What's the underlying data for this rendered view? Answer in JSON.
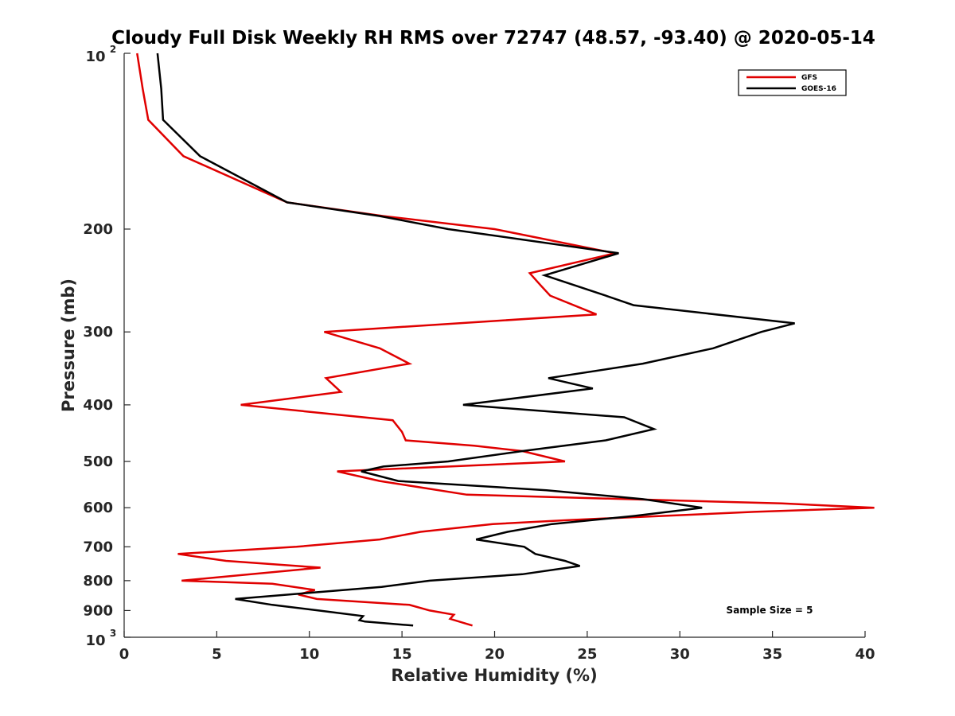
{
  "chart_data": {
    "type": "line",
    "title": "Cloudy Full Disk Weekly RH RMS over 72747 (48.57, -93.40) @ 2020-05-14",
    "xlabel": "Relative Humidity (%)",
    "ylabel": "Pressure (mb)",
    "xlim": [
      0,
      40
    ],
    "ylim": [
      100,
      1000
    ],
    "yscale": "log",
    "yreverse": true,
    "x_ticks": [
      "0",
      "5",
      "10",
      "15",
      "20",
      "25",
      "30",
      "35",
      "40"
    ],
    "y_ticks": [
      {
        "value": 100,
        "base": "10",
        "exp": "2"
      },
      {
        "value": 200,
        "label": "200"
      },
      {
        "value": 300,
        "label": "300"
      },
      {
        "value": 400,
        "label": "400"
      },
      {
        "value": 500,
        "label": "500"
      },
      {
        "value": 600,
        "label": "600"
      },
      {
        "value": 700,
        "label": "700"
      },
      {
        "value": 800,
        "label": "800"
      },
      {
        "value": 900,
        "label": "900"
      },
      {
        "value": 1000,
        "base": "10",
        "exp": "3"
      }
    ],
    "legend_position": "top-right",
    "annotation": "Sample Size = 5",
    "series": [
      {
        "name": "GFS",
        "color": "#e00000",
        "points": [
          [
            0.7,
            100
          ],
          [
            1.0,
            115
          ],
          [
            1.3,
            130
          ],
          [
            3.2,
            150
          ],
          [
            8.8,
            180
          ],
          [
            14.0,
            190
          ],
          [
            20.0,
            200
          ],
          [
            26.5,
            220
          ],
          [
            21.9,
            238
          ],
          [
            22.5,
            250
          ],
          [
            23.0,
            260
          ],
          [
            25.5,
            280
          ],
          [
            10.8,
            300
          ],
          [
            13.8,
            320
          ],
          [
            15.4,
            340
          ],
          [
            10.9,
            360
          ],
          [
            11.7,
            380
          ],
          [
            6.3,
            400
          ],
          [
            14.5,
            425
          ],
          [
            15.0,
            445
          ],
          [
            15.2,
            460
          ],
          [
            18.9,
            470
          ],
          [
            21.5,
            480
          ],
          [
            23.8,
            500
          ],
          [
            11.5,
            520
          ],
          [
            13.8,
            540
          ],
          [
            18.5,
            570
          ],
          [
            35.5,
            590
          ],
          [
            40.5,
            600
          ],
          [
            34.0,
            610
          ],
          [
            24.0,
            630
          ],
          [
            19.9,
            640
          ],
          [
            16.0,
            660
          ],
          [
            13.8,
            680
          ],
          [
            9.3,
            700
          ],
          [
            2.9,
            720
          ],
          [
            5.5,
            740
          ],
          [
            10.6,
            760
          ],
          [
            3.1,
            800
          ],
          [
            8.0,
            810
          ],
          [
            10.3,
            830
          ],
          [
            9.4,
            845
          ],
          [
            10.4,
            860
          ],
          [
            15.4,
            880
          ],
          [
            16.5,
            900
          ],
          [
            17.8,
            915
          ],
          [
            17.6,
            930
          ],
          [
            18.8,
            955
          ]
        ]
      },
      {
        "name": "GOES-16",
        "color": "#000000",
        "points": [
          [
            1.8,
            100
          ],
          [
            2.0,
            115
          ],
          [
            2.1,
            130
          ],
          [
            4.1,
            150
          ],
          [
            8.8,
            180
          ],
          [
            13.8,
            190
          ],
          [
            17.5,
            200
          ],
          [
            26.7,
            220
          ],
          [
            22.7,
            240
          ],
          [
            26.0,
            260
          ],
          [
            27.5,
            270
          ],
          [
            36.2,
            290
          ],
          [
            34.4,
            300
          ],
          [
            31.8,
            320
          ],
          [
            28.0,
            340
          ],
          [
            22.9,
            360
          ],
          [
            25.3,
            375
          ],
          [
            18.3,
            400
          ],
          [
            27.0,
            420
          ],
          [
            28.6,
            440
          ],
          [
            26.0,
            460
          ],
          [
            21.5,
            480
          ],
          [
            17.5,
            500
          ],
          [
            14.0,
            510
          ],
          [
            12.8,
            520
          ],
          [
            14.8,
            540
          ],
          [
            22.8,
            560
          ],
          [
            28.0,
            580
          ],
          [
            31.2,
            600
          ],
          [
            27.5,
            620
          ],
          [
            23.1,
            640
          ],
          [
            20.7,
            660
          ],
          [
            19.0,
            680
          ],
          [
            21.6,
            700
          ],
          [
            22.2,
            720
          ],
          [
            23.8,
            740
          ],
          [
            24.6,
            755
          ],
          [
            21.5,
            780
          ],
          [
            16.5,
            800
          ],
          [
            13.9,
            820
          ],
          [
            9.9,
            840
          ],
          [
            6.0,
            860
          ],
          [
            8.0,
            880
          ],
          [
            10.5,
            900
          ],
          [
            12.9,
            920
          ],
          [
            12.7,
            935
          ],
          [
            13.0,
            940
          ],
          [
            15.6,
            955
          ]
        ]
      }
    ]
  }
}
